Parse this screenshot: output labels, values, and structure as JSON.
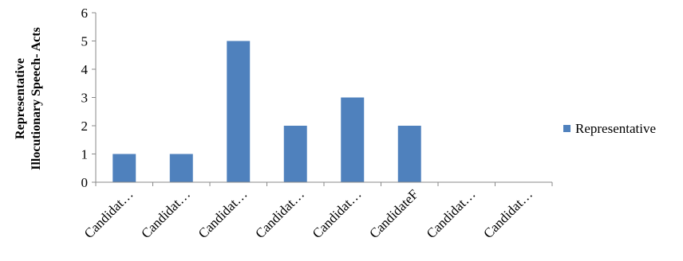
{
  "chart_data": {
    "type": "bar",
    "categories": [
      "Candidat…",
      "Candidat…",
      "Candidat…",
      "Candidat…",
      "Candidat…",
      "CandidateF",
      "Candidat…",
      "Candidat…"
    ],
    "series": [
      {
        "name": "Representative",
        "values": [
          1,
          1,
          5,
          2,
          3,
          2,
          0,
          0
        ],
        "color": "#4f81bd"
      }
    ],
    "ylabel_line1": "Representative",
    "ylabel_line2": "Illocutionary Speech- Acts",
    "ylim": [
      0,
      6
    ],
    "yticks": [
      "0",
      "1",
      "2",
      "3",
      "4",
      "5",
      "6"
    ],
    "grid": false,
    "legend_position": "right"
  }
}
